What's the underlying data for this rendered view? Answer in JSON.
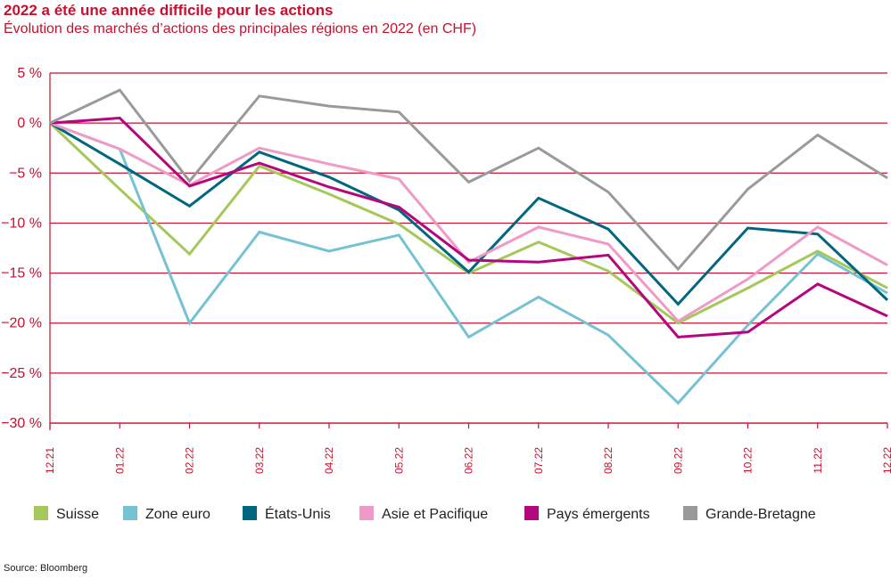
{
  "header": {
    "title": "2022 a été une année difficile pour les actions",
    "subtitle": "Évolution des marchés d’actions des principales régions en 2022 (en CHF)"
  },
  "footer": {
    "source": "Source: Bloomberg"
  },
  "chart_data": {
    "type": "line",
    "title": "2022 a été une année difficile pour les actions",
    "subtitle": "Évolution des marchés d’actions des principales régions en 2022 (en CHF)",
    "xlabel": "",
    "ylabel": "",
    "x": [
      "12.21",
      "01.22",
      "02.22",
      "03.22",
      "04.22",
      "05.22",
      "06.22",
      "07.22",
      "08.22",
      "09.22",
      "10.22",
      "11.22",
      "12.22"
    ],
    "ylim": [
      -30,
      5
    ],
    "yticks": [
      5,
      0,
      -5,
      -10,
      -15,
      -20,
      -25,
      -30
    ],
    "ytick_labels": [
      "5 %",
      "0 %",
      "−5 %",
      "−10 %",
      "−15 %",
      "−20 %",
      "−25 %",
      "−30 %"
    ],
    "grid": true,
    "legend_position": "bottom",
    "series": [
      {
        "name": "Suisse",
        "color": "#a5c85a",
        "values": [
          0,
          -6.6,
          -13.1,
          -4.3,
          -7.1,
          -10.1,
          -15.0,
          -11.9,
          -14.8,
          -20.0,
          -16.5,
          -12.8,
          -16.5
        ]
      },
      {
        "name": "Zone euro",
        "color": "#74c2d2",
        "values": [
          0,
          -2.6,
          -20.0,
          -10.9,
          -12.8,
          -11.2,
          -21.4,
          -17.4,
          -21.2,
          -28.0,
          -20.2,
          -13.1,
          -17.0
        ]
      },
      {
        "name": "États-Unis",
        "color": "#00677f",
        "values": [
          0,
          -4.1,
          -8.3,
          -2.9,
          -5.4,
          -8.7,
          -14.9,
          -7.5,
          -10.6,
          -18.1,
          -10.5,
          -11.1,
          -17.7
        ]
      },
      {
        "name": "Asie et Pacifique",
        "color": "#f09ac6",
        "values": [
          0,
          -2.6,
          -6.2,
          -2.5,
          -4.1,
          -5.6,
          -13.9,
          -10.4,
          -12.1,
          -19.8,
          -15.6,
          -10.4,
          -14.2
        ]
      },
      {
        "name": "Pays émergents",
        "color": "#b5077d",
        "values": [
          0,
          0.5,
          -6.3,
          -4.0,
          -6.4,
          -8.4,
          -13.7,
          -13.9,
          -13.2,
          -21.4,
          -20.9,
          -16.1,
          -19.3
        ]
      },
      {
        "name": "Grande-Bretagne",
        "color": "#999a9c",
        "values": [
          0,
          3.3,
          -5.8,
          2.7,
          1.7,
          1.1,
          -5.9,
          -2.5,
          -6.9,
          -14.6,
          -6.6,
          -1.2,
          -5.5
        ]
      }
    ]
  }
}
